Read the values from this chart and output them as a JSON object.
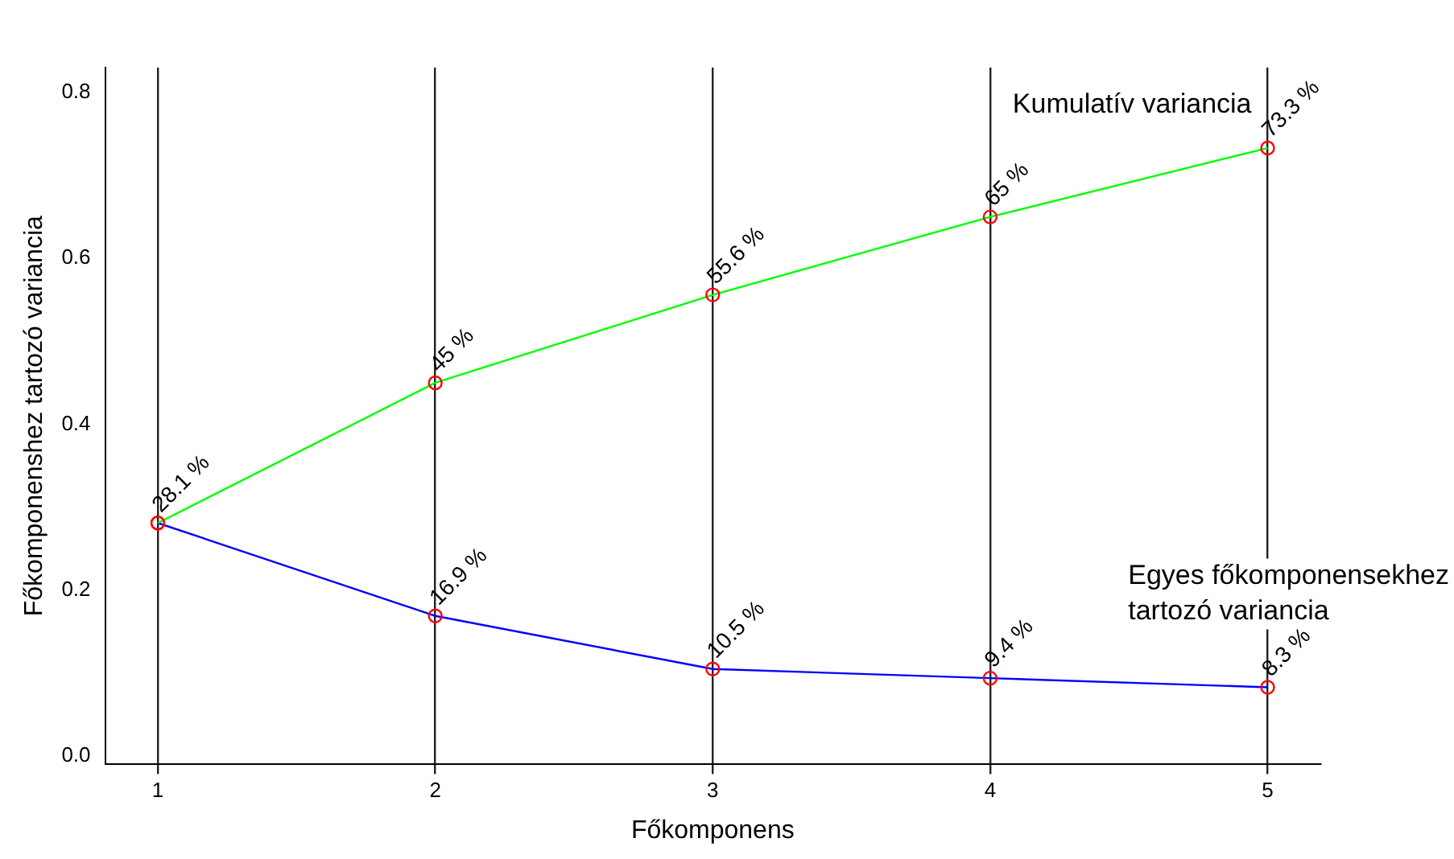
{
  "chart_data": {
    "type": "line",
    "xlabel": "Főkomponens",
    "ylabel": "Főkomponenshez tartozó variancia",
    "x": [
      1,
      2,
      3,
      4,
      5
    ],
    "series": [
      {
        "name": "Kumulatív variancia",
        "color": "#00ff00",
        "values": [
          0.281,
          0.45,
          0.556,
          0.65,
          0.733
        ],
        "value_labels": [
          "28.1 %",
          "45 %",
          "55.6 %",
          "65 %",
          "73.3 %"
        ]
      },
      {
        "name": "Egyes főkomponensekhez tartozó variancia",
        "color": "#0000ff",
        "values": [
          0.281,
          0.169,
          0.105,
          0.094,
          0.083
        ],
        "value_labels": [
          null,
          "16.9 %",
          "10.5 %",
          "9.4 %",
          "8.3 %"
        ]
      }
    ],
    "xlim": [
      0.81,
      5.19
    ],
    "xticks": [
      1,
      2,
      3,
      4,
      5
    ],
    "ylim": [
      -0.01,
      0.83
    ],
    "yticks": [
      {
        "value": 0,
        "label": "0.0"
      },
      0.2,
      0.4,
      0.6,
      0.8
    ],
    "grid": "x",
    "marker": "circle",
    "line_style": "solid",
    "legend": false
  }
}
